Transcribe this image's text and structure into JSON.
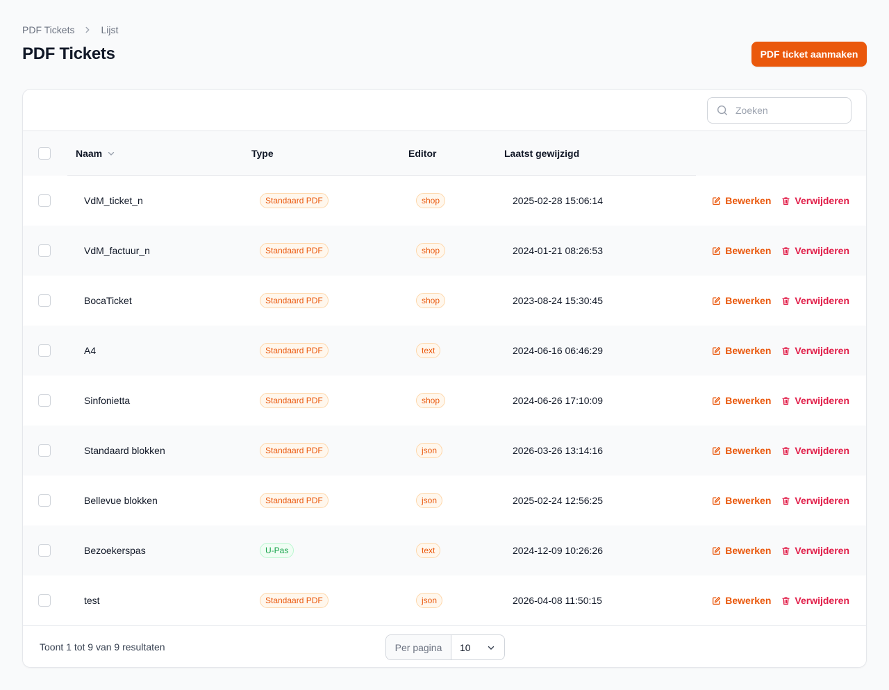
{
  "breadcrumb": {
    "root": "PDF Tickets",
    "current": "Lijst"
  },
  "page": {
    "title": "PDF Tickets",
    "create_label": "PDF ticket aanmaken"
  },
  "search": {
    "placeholder": "Zoeken",
    "value": ""
  },
  "columns": {
    "name": "Naam",
    "type": "Type",
    "editor": "Editor",
    "modified": "Laatst gewijzigd"
  },
  "actions": {
    "edit": "Bewerken",
    "delete": "Verwijderen"
  },
  "rows": [
    {
      "name": "VdM_ticket_n",
      "type": "Standaard PDF",
      "type_color": "orange",
      "editor": "shop",
      "modified": "2025-02-28 15:06:14"
    },
    {
      "name": "VdM_factuur_n",
      "type": "Standaard PDF",
      "type_color": "orange",
      "editor": "shop",
      "modified": "2024-01-21 08:26:53"
    },
    {
      "name": "BocaTicket",
      "type": "Standaard PDF",
      "type_color": "orange",
      "editor": "shop",
      "modified": "2023-08-24 15:30:45"
    },
    {
      "name": "A4",
      "type": "Standaard PDF",
      "type_color": "orange",
      "editor": "text",
      "modified": "2024-06-16 06:46:29"
    },
    {
      "name": "Sinfonietta",
      "type": "Standaard PDF",
      "type_color": "orange",
      "editor": "shop",
      "modified": "2024-06-26 17:10:09"
    },
    {
      "name": "Standaard blokken",
      "type": "Standaard PDF",
      "type_color": "orange",
      "editor": "json",
      "modified": "2026-03-26 13:14:16"
    },
    {
      "name": "Bellevue blokken",
      "type": "Standaard PDF",
      "type_color": "orange",
      "editor": "json",
      "modified": "2025-02-24 12:56:25"
    },
    {
      "name": "Bezoekerspas",
      "type": "U-Pas",
      "type_color": "green",
      "editor": "text",
      "modified": "2024-12-09 10:26:26"
    },
    {
      "name": "test",
      "type": "Standaard PDF",
      "type_color": "orange",
      "editor": "json",
      "modified": "2026-04-08 11:50:15"
    }
  ],
  "footer": {
    "results_text": "Toont 1 tot 9 van 9 resultaten",
    "per_page_label": "Per pagina",
    "per_page_value": "10"
  },
  "colors": {
    "accent": "#ea580c",
    "danger": "#e11d48",
    "success": "#16a34a"
  }
}
